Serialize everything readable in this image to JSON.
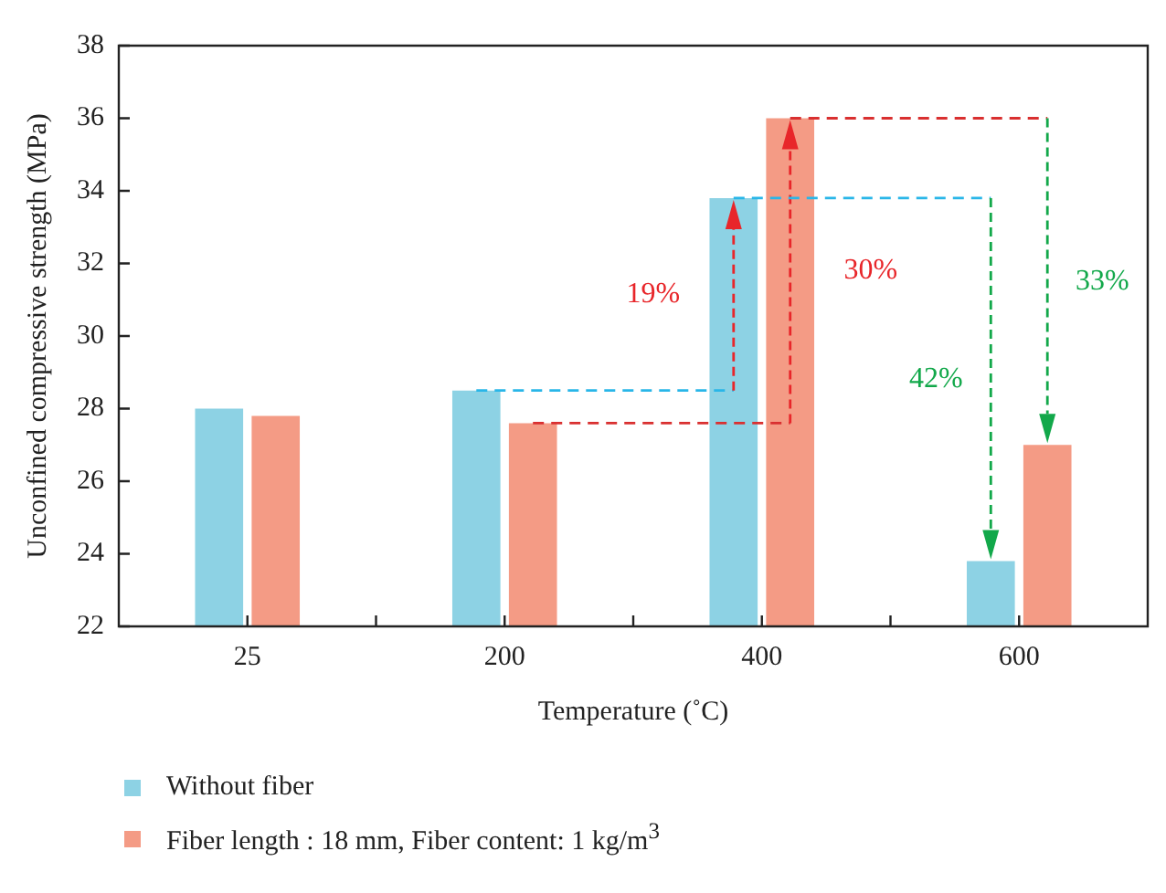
{
  "chart_data": {
    "type": "bar",
    "xlabel": "Temperature (˚C)",
    "ylabel": "Unconfined compressive strength (MPa)",
    "categories": [
      "25",
      "200",
      "400",
      "600"
    ],
    "series": [
      {
        "name": "Without fiber",
        "color": "#8dd2e4",
        "values": [
          28.0,
          28.5,
          33.8,
          23.8
        ]
      },
      {
        "name": "Fiber length : 18 mm, Fiber content: 1 kg/m$^{3}$",
        "color": "#f49b85",
        "values": [
          27.8,
          27.6,
          36.0,
          27.0
        ]
      }
    ],
    "ylim": [
      22,
      38
    ],
    "yticks": [
      22,
      24,
      26,
      28,
      30,
      32,
      34,
      36,
      38
    ],
    "grid": false,
    "legend": "bottom",
    "annotations": [
      "19%",
      "30%",
      "42%",
      "33%"
    ]
  }
}
